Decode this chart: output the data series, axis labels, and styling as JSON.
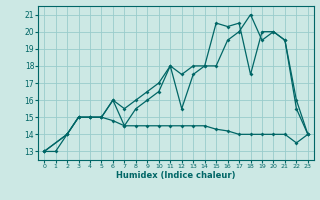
{
  "title": "",
  "xlabel": "Humidex (Indice chaleur)",
  "bg_color": "#cce8e4",
  "grid_color": "#99cccc",
  "line_color": "#006666",
  "xlim": [
    -0.5,
    23.5
  ],
  "ylim": [
    12.5,
    21.5
  ],
  "xticks": [
    0,
    1,
    2,
    3,
    4,
    5,
    6,
    7,
    8,
    9,
    10,
    11,
    12,
    13,
    14,
    15,
    16,
    17,
    18,
    19,
    20,
    21,
    22,
    23
  ],
  "yticks": [
    13,
    14,
    15,
    16,
    17,
    18,
    19,
    20,
    21
  ],
  "line1_x": [
    0,
    1,
    2,
    3,
    4,
    5,
    6,
    7,
    8,
    9,
    10,
    11,
    12,
    13,
    14,
    15,
    16,
    17,
    18,
    19,
    20,
    21,
    22,
    23
  ],
  "line1_y": [
    13,
    13,
    14,
    15,
    15,
    15,
    14.8,
    14.5,
    14.5,
    14.5,
    14.5,
    14.5,
    14.5,
    14.5,
    14.5,
    14.3,
    14.2,
    14.0,
    14.0,
    14.0,
    14.0,
    14.0,
    13.5,
    14.0
  ],
  "line2_x": [
    0,
    2,
    3,
    4,
    5,
    6,
    7,
    8,
    9,
    10,
    11,
    12,
    13,
    14,
    15,
    16,
    17,
    18,
    19,
    20,
    21,
    22,
    23
  ],
  "line2_y": [
    13,
    14,
    15,
    15,
    15,
    16,
    15.5,
    16,
    16.5,
    17,
    18,
    17.5,
    18,
    18,
    18,
    19.5,
    20,
    21,
    19.5,
    20,
    19.5,
    16,
    14
  ],
  "line3_x": [
    0,
    2,
    3,
    4,
    5,
    6,
    7,
    8,
    9,
    10,
    11,
    12,
    13,
    14,
    15,
    16,
    17,
    18,
    19,
    20,
    21,
    22,
    23
  ],
  "line3_y": [
    13,
    14,
    15,
    15,
    15,
    16,
    14.5,
    15.5,
    16,
    16.5,
    18,
    15.5,
    17.5,
    18,
    20.5,
    20.3,
    20.5,
    17.5,
    20,
    20,
    19.5,
    15.5,
    14
  ]
}
